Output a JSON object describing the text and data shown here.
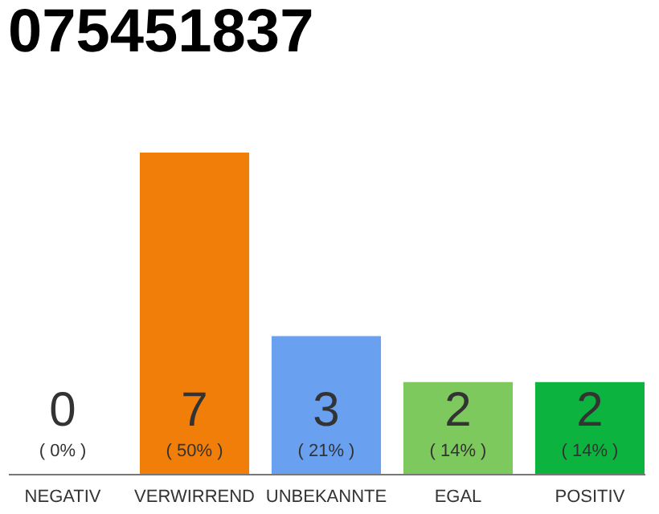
{
  "chart_data": {
    "type": "bar",
    "title": "075451837",
    "categories": [
      "NEGATIV",
      "VERWIRREND",
      "UNBEKANNTE",
      "EGAL",
      "POSITIV"
    ],
    "values": [
      0,
      7,
      3,
      2,
      2
    ],
    "colors": [
      "#cccccc",
      "#f27e0a",
      "#6aa0f0",
      "#7dc95e",
      "#0db33f"
    ],
    "ylim": [
      0,
      7
    ],
    "data_labels": true,
    "tick_labels": "x",
    "annotations": [
      "( 0% )",
      "( 50% )",
      "( 21% )",
      "( 14% )",
      "( 14% )"
    ]
  }
}
